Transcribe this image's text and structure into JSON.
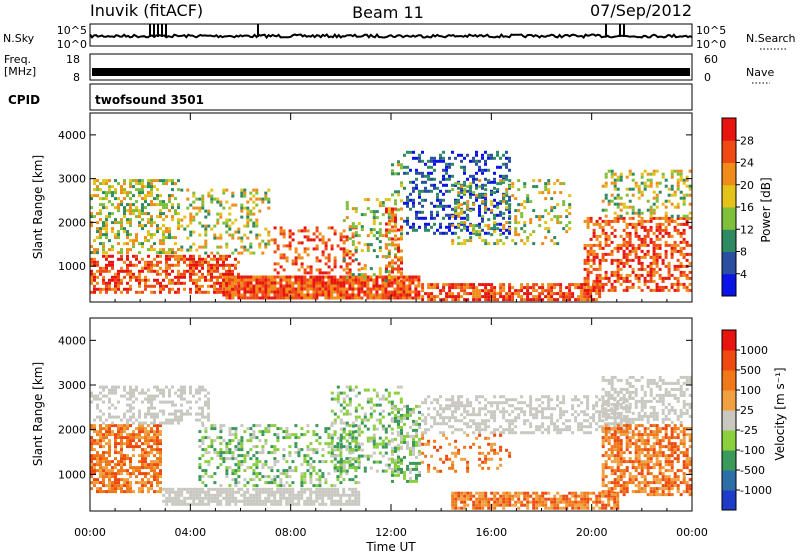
{
  "header": {
    "station": "Inuvik (fitACF)",
    "beam": "Beam 11",
    "date": "07/Sep/2012"
  },
  "top_panels": {
    "nsky_label": "N.Sky",
    "nsky_ticks": [
      "10^5",
      "10^0"
    ],
    "nsearch_label": "N.Search",
    "nsearch_ticks": [
      "10^5",
      "10^0"
    ],
    "freq_label_1": "Freq.",
    "freq_label_2": "[MHz]",
    "freq_ticks": [
      "18",
      "8"
    ],
    "nave_label": "Nave",
    "nave_ticks": [
      "60",
      "0"
    ],
    "cpid_label": "CPID",
    "cpid_value": "twofsound 3501"
  },
  "chart_data": [
    {
      "type": "heatmap",
      "name": "power",
      "xlabel": "",
      "ylabel": "Slant Range [km]",
      "y_ticks": [
        1000,
        2000,
        3000,
        4000
      ],
      "ylim": [
        180,
        4500
      ],
      "colorbar": {
        "label": "Power [dB]",
        "ticks": [
          "4",
          "8",
          "12",
          "16",
          "20",
          "24",
          "28"
        ],
        "colors": [
          "#0a14e6",
          "#2a4ea0",
          "#2e8a62",
          "#7fbf3a",
          "#e3c21a",
          "#f08c1a",
          "#f04a14",
          "#e8140f"
        ]
      }
    },
    {
      "type": "heatmap",
      "name": "velocity",
      "xlabel": "Time UT",
      "ylabel": "Slant Range [km]",
      "x_ticks": [
        "00:00",
        "04:00",
        "08:00",
        "12:00",
        "16:00",
        "20:00",
        "00:00"
      ],
      "y_ticks": [
        1000,
        2000,
        3000,
        4000
      ],
      "ylim": [
        180,
        4500
      ],
      "colorbar": {
        "label": "Velocity [m s⁻¹]",
        "ticks": [
          "1000",
          "500",
          "100",
          "25",
          "-25",
          "-100",
          "-500",
          "-1000"
        ],
        "colors": [
          "#1e3cc8",
          "#2e6ea6",
          "#3a9a5a",
          "#8ccf3c",
          "#c8c8c0",
          "#f0a040",
          "#f07818",
          "#ee4a10",
          "#e8140f"
        ]
      }
    }
  ]
}
